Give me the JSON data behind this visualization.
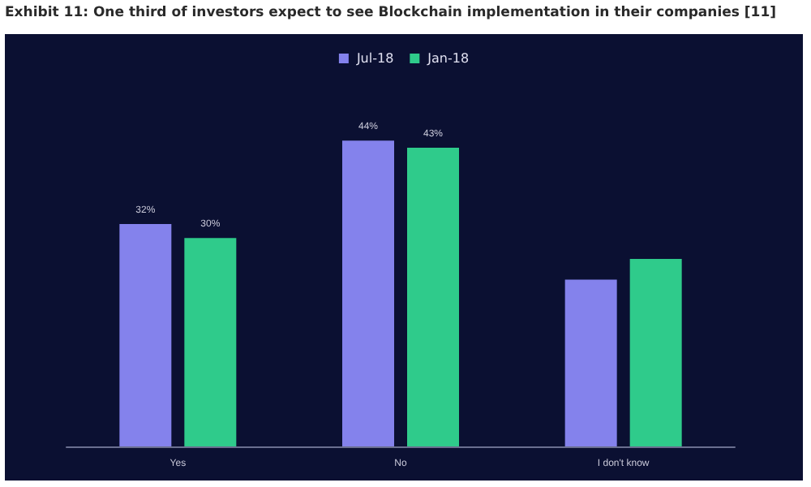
{
  "chart_data": {
    "type": "bar",
    "title": "Exhibit 11: One third of investors expect to see Blockchain implementation in their companies [11]",
    "categories": [
      "Yes",
      "No",
      "I don't know"
    ],
    "series": [
      {
        "name": "Jul-18",
        "color": "#8482ec",
        "values": [
          32,
          44,
          24
        ],
        "value_labels": [
          "32%",
          "44%",
          null
        ]
      },
      {
        "name": "Jan-18",
        "color": "#2fcb8b",
        "values": [
          30,
          43,
          27
        ],
        "value_labels": [
          "30%",
          "43%",
          null
        ]
      }
    ],
    "legend": "top",
    "grid": false
  }
}
